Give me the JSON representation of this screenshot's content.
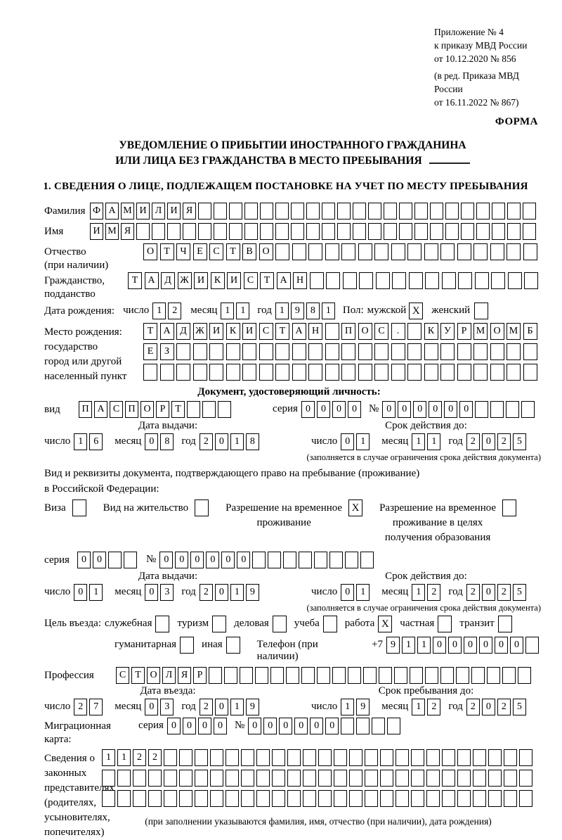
{
  "meta": {
    "appendix": [
      "Приложение № 4",
      "к приказу МВД России",
      "от 10.12.2020 № 856"
    ],
    "amendment": [
      "(в ред. Приказа МВД России",
      "от 16.11.2022 № 867)"
    ],
    "form_label": "ФОРМА"
  },
  "title": {
    "line1": "УВЕДОМЛЕНИЕ О ПРИБЫТИИ ИНОСТРАННОГО ГРАЖДАНИНА",
    "line2": "ИЛИ ЛИЦА БЕЗ ГРАЖДАНСТВА В МЕСТО ПРЕБЫВАНИЯ"
  },
  "section1_heading": "1. СВЕДЕНИЯ О ЛИЦЕ, ПОДЛЕЖАЩЕМ ПОСТАНОВКЕ НА УЧЕТ ПО МЕСТУ ПРЕБЫВАНИЯ",
  "date_labels": {
    "day": "число",
    "month": "месяц",
    "year": "год"
  },
  "person": {
    "surname": {
      "label": "Фамилия",
      "value": "ФАМИЛИЯ",
      "len": 29
    },
    "given_name": {
      "label": "Имя",
      "value": "ИМЯ",
      "len": 29
    },
    "patronymic": {
      "label": "Отчество\n(при наличии)",
      "value": "ОТЧЕСТВО",
      "len": 24
    },
    "citizenship": {
      "label": "Гражданство,\nподданство",
      "value": "ТАДЖИКИСТАН",
      "len": 25
    },
    "birth_date": {
      "label": "Дата рождения:",
      "day": "12",
      "month": "11",
      "year": "1981"
    },
    "sex": {
      "label": "Пол:",
      "male_label": "мужской",
      "male": "X",
      "female_label": "женский",
      "female": ""
    },
    "birth_place": {
      "label": "Место рождения:\nгосударство\nгород или другой\nнаселенный пункт",
      "row1": {
        "value": "ТАДЖИКИСТАН ПОС. КУРМОМБ",
        "len": 24
      },
      "row2": {
        "value": "ЕЗ",
        "len": 24
      },
      "row3": {
        "value": "",
        "len": 24
      }
    }
  },
  "identity_doc": {
    "heading": "Документ, удостоверяющий личность:",
    "kind_label": "вид",
    "kind": {
      "value": "ПАСПОРТ",
      "len": 10
    },
    "series_label": "серия",
    "series": {
      "value": "0000",
      "len": 4
    },
    "number_label": "№",
    "number": {
      "value": "000000",
      "len": 10
    },
    "issue": {
      "heading": "Дата выдачи:",
      "day": "16",
      "month": "08",
      "year": "2018"
    },
    "valid": {
      "heading": "Срок действия до:",
      "day": "01",
      "month": "11",
      "year": "2025",
      "note": "(заполняется в случае ограничения срока действия документа)"
    }
  },
  "residence_doc": {
    "line1": "Вид и реквизиты документа, подтверждающего право на пребывание (проживание)",
    "line2": "в Российской Федерации:",
    "options": [
      {
        "label": "Виза",
        "checked": ""
      },
      {
        "label": "Вид на жительство",
        "checked": ""
      },
      {
        "label": "Разрешение на временное\nпроживание",
        "checked": "X"
      },
      {
        "label": "Разрешение на временное\nпроживание в целях\nполучения образования",
        "checked": ""
      }
    ],
    "series_label": "серия",
    "series": {
      "value": "00",
      "len": 4
    },
    "number_label": "№",
    "number": {
      "value": "000000",
      "len": 14
    },
    "issue": {
      "heading": "Дата выдачи:",
      "day": "01",
      "month": "03",
      "year": "2019"
    },
    "valid": {
      "heading": "Срок действия до:",
      "day": "01",
      "month": "12",
      "year": "2025",
      "note": "(заполняется в случае ограничения срока действия документа)"
    }
  },
  "visit": {
    "purpose_label": "Цель въезда:",
    "purpose_options": [
      {
        "label": "служебная",
        "checked": ""
      },
      {
        "label": "туризм",
        "checked": ""
      },
      {
        "label": "деловая",
        "checked": ""
      },
      {
        "label": "учеба",
        "checked": ""
      },
      {
        "label": "работа",
        "checked": "X"
      },
      {
        "label": "частная",
        "checked": ""
      },
      {
        "label": "транзит",
        "checked": ""
      }
    ],
    "purpose_options2": [
      {
        "label": "гуманитарная",
        "checked": ""
      },
      {
        "label": "иная",
        "checked": ""
      }
    ],
    "phone_label": "Телефон (при наличии)",
    "phone_prefix": "+7",
    "phone": {
      "value": "911000000",
      "len": 10
    },
    "profession": {
      "label": "Профессия",
      "value": "СТОЛЯР",
      "len": 27
    },
    "entry": {
      "heading": "Дата въезда:",
      "day": "27",
      "month": "03",
      "year": "2019"
    },
    "stay": {
      "heading": "Срок пребывания до:",
      "day": "19",
      "month": "12",
      "year": "2025"
    },
    "migration_card": {
      "label": "Миграционная карта:",
      "series_label": "серия",
      "series": {
        "value": "0000",
        "len": 4
      },
      "number_label": "№",
      "number": {
        "value": "000000",
        "len": 10
      }
    }
  },
  "legal_reps": {
    "label": "Сведения о\nзаконных\nпредставителях\n(родителях,\nусыновителях,\nпопечителях)",
    "row1": {
      "value": "1122",
      "len": 28
    },
    "row2": {
      "value": "",
      "len": 28
    },
    "row3": {
      "value": "",
      "len": 28
    },
    "note": "(при заполнении указываются фамилия, имя, отчество (при наличии), дата рождения)"
  }
}
